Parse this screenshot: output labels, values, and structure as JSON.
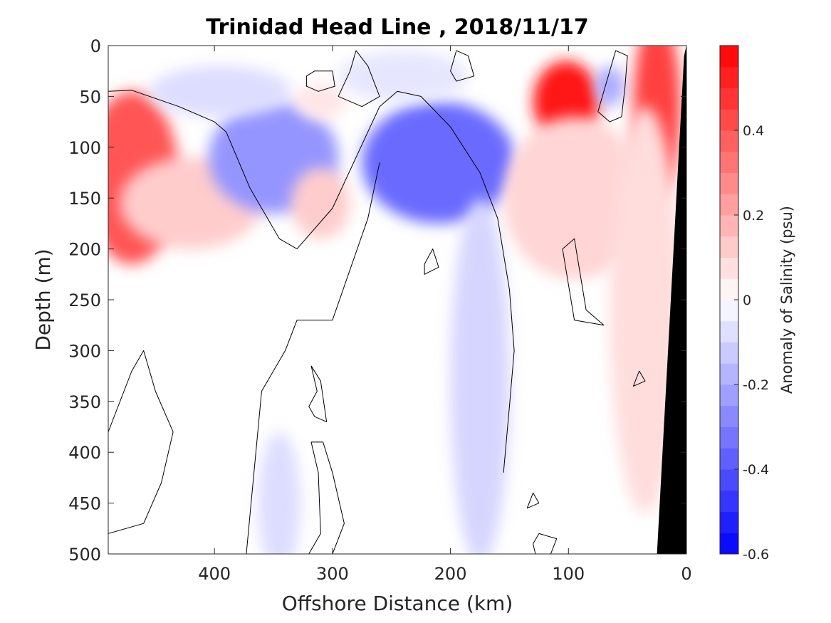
{
  "chart_data": {
    "type": "heatmap",
    "title": "Trinidad Head Line , 2018/11/17",
    "xlabel": "Offshore Distance (km)",
    "ylabel": "Depth (m)",
    "colorbar_label": "Anomaly of Salinity (psu)",
    "xlim": [
      490,
      0
    ],
    "ylim": [
      0,
      500
    ],
    "x_reversed": true,
    "y_reversed": true,
    "xticks": [
      "400",
      "300",
      "200",
      "100",
      "0"
    ],
    "xtick_values": [
      400,
      300,
      200,
      100,
      0
    ],
    "yticks": [
      "0",
      "50",
      "100",
      "150",
      "200",
      "250",
      "300",
      "350",
      "400",
      "450",
      "500"
    ],
    "ytick_values": [
      0,
      50,
      100,
      150,
      200,
      250,
      300,
      350,
      400,
      450,
      500
    ],
    "colorbar": {
      "min": -0.6,
      "max": 0.6,
      "step": 0.05,
      "ticks": [
        "0.4",
        "0.2",
        "0",
        "-0.2",
        "-0.4",
        "-0.6"
      ],
      "tick_values": [
        0.4,
        0.2,
        0,
        -0.2,
        -0.4,
        -0.6
      ],
      "colormap": "blue-white-red",
      "neg_color": "#0000ff",
      "pos_color": "#ff0000",
      "zero_color": "#ffffff"
    },
    "features": [
      {
        "kind": "anomaly",
        "x": 470,
        "y": 130,
        "rx": 40,
        "ry": 85,
        "value": 0.4
      },
      {
        "kind": "anomaly",
        "x": 420,
        "y": 155,
        "rx": 60,
        "ry": 45,
        "value": 0.12
      },
      {
        "kind": "anomaly",
        "x": 350,
        "y": 110,
        "rx": 55,
        "ry": 55,
        "value": -0.25
      },
      {
        "kind": "anomaly",
        "x": 395,
        "y": 45,
        "rx": 60,
        "ry": 25,
        "value": -0.08
      },
      {
        "kind": "anomaly",
        "x": 310,
        "y": 155,
        "rx": 25,
        "ry": 35,
        "value": 0.12
      },
      {
        "kind": "anomaly",
        "x": 310,
        "y": 55,
        "rx": 22,
        "ry": 18,
        "value": 0.06
      },
      {
        "kind": "anomaly",
        "x": 210,
        "y": 115,
        "rx": 65,
        "ry": 60,
        "value": -0.35
      },
      {
        "kind": "anomaly",
        "x": 175,
        "y": 330,
        "rx": 25,
        "ry": 180,
        "value": -0.1
      },
      {
        "kind": "anomaly",
        "x": 345,
        "y": 450,
        "rx": 18,
        "ry": 70,
        "value": -0.08
      },
      {
        "kind": "anomaly",
        "x": 102,
        "y": 55,
        "rx": 28,
        "ry": 40,
        "value": 0.55
      },
      {
        "kind": "anomaly",
        "x": 95,
        "y": 150,
        "rx": 60,
        "ry": 80,
        "value": 0.1
      },
      {
        "kind": "anomaly",
        "x": 65,
        "y": 40,
        "rx": 12,
        "ry": 20,
        "value": -0.2
      },
      {
        "kind": "anomaly",
        "x": 25,
        "y": 60,
        "rx": 20,
        "ry": 90,
        "value": 0.45
      },
      {
        "kind": "anomaly",
        "x": 35,
        "y": 260,
        "rx": 30,
        "ry": 200,
        "value": 0.08
      },
      {
        "kind": "anomaly",
        "x": 240,
        "y": 30,
        "rx": 55,
        "ry": 25,
        "value": -0.06
      }
    ],
    "zero_contours": [
      [
        [
          490,
          45
        ],
        [
          470,
          44
        ],
        [
          430,
          60
        ],
        [
          400,
          75
        ],
        [
          390,
          85
        ],
        [
          370,
          140
        ],
        [
          345,
          190
        ],
        [
          330,
          200
        ],
        [
          300,
          160
        ],
        [
          280,
          110
        ],
        [
          260,
          60
        ],
        [
          245,
          45
        ],
        [
          225,
          50
        ],
        [
          200,
          80
        ],
        [
          175,
          125
        ],
        [
          160,
          170
        ],
        [
          150,
          240
        ],
        [
          146,
          300
        ],
        [
          150,
          355
        ],
        [
          155,
          420
        ]
      ],
      [
        [
          260,
          115
        ],
        [
          270,
          170
        ],
        [
          300,
          270
        ],
        [
          330,
          270
        ],
        [
          340,
          300
        ],
        [
          360,
          340
        ],
        [
          373,
          500
        ]
      ],
      [
        [
          322,
          30
        ],
        [
          322,
          40
        ],
        [
          312,
          45
        ],
        [
          298,
          40
        ],
        [
          300,
          25
        ],
        [
          315,
          25
        ],
        [
          322,
          30
        ]
      ],
      [
        [
          295,
          50
        ],
        [
          285,
          25
        ],
        [
          280,
          5
        ],
        [
          270,
          20
        ],
        [
          260,
          50
        ],
        [
          275,
          60
        ],
        [
          295,
          50
        ]
      ],
      [
        [
          200,
          25
        ],
        [
          195,
          5
        ],
        [
          185,
          10
        ],
        [
          180,
          30
        ],
        [
          195,
          35
        ],
        [
          200,
          25
        ]
      ],
      [
        [
          222,
          215
        ],
        [
          215,
          200
        ],
        [
          210,
          218
        ],
        [
          222,
          225
        ],
        [
          222,
          215
        ]
      ],
      [
        [
          105,
          200
        ],
        [
          95,
          190
        ],
        [
          85,
          260
        ],
        [
          70,
          275
        ],
        [
          95,
          270
        ],
        [
          105,
          200
        ]
      ],
      [
        [
          75,
          65
        ],
        [
          65,
          75
        ],
        [
          55,
          70
        ],
        [
          52,
          40
        ],
        [
          50,
          10
        ],
        [
          60,
          5
        ],
        [
          75,
          65
        ]
      ],
      [
        [
          490,
          380
        ],
        [
          470,
          320
        ],
        [
          460,
          300
        ],
        [
          450,
          340
        ],
        [
          435,
          380
        ],
        [
          445,
          430
        ],
        [
          460,
          470
        ],
        [
          490,
          480
        ]
      ],
      [
        [
          318,
          315
        ],
        [
          313,
          340
        ],
        [
          320,
          355
        ],
        [
          315,
          365
        ],
        [
          305,
          370
        ],
        [
          310,
          330
        ],
        [
          318,
          315
        ]
      ],
      [
        [
          318,
          390
        ],
        [
          312,
          420
        ],
        [
          310,
          480
        ],
        [
          320,
          500
        ],
        [
          300,
          500
        ],
        [
          290,
          470
        ],
        [
          300,
          420
        ],
        [
          308,
          390
        ],
        [
          318,
          390
        ]
      ],
      [
        [
          125,
          450
        ],
        [
          130,
          440
        ],
        [
          135,
          455
        ],
        [
          125,
          450
        ]
      ],
      [
        [
          125,
          480
        ],
        [
          130,
          490
        ],
        [
          128,
          500
        ],
        [
          115,
          500
        ],
        [
          110,
          485
        ],
        [
          125,
          480
        ]
      ],
      [
        [
          40,
          320
        ],
        [
          45,
          335
        ],
        [
          35,
          330
        ],
        [
          40,
          320
        ]
      ]
    ],
    "seafloor_color": "#000000",
    "seafloor": [
      [
        0,
        0
      ],
      [
        0,
        500
      ],
      [
        25,
        500
      ],
      [
        2,
        10
      ]
    ]
  }
}
